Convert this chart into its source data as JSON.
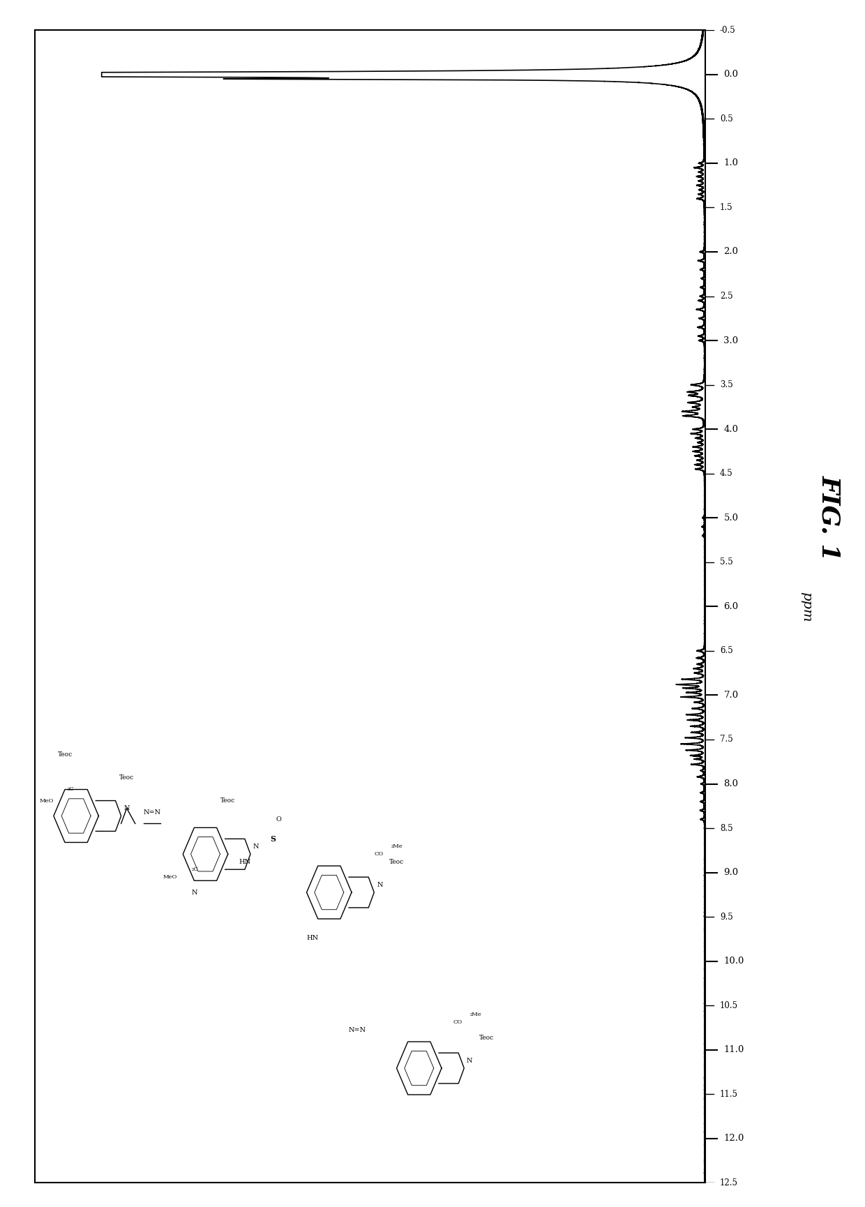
{
  "background_color": "#ffffff",
  "spectrum_color": "#000000",
  "ppm_min": -0.5,
  "ppm_max": 12.5,
  "fig_label": "FIG. 1",
  "fig_label_fontsize": 26,
  "ppm_label": "ppm",
  "tick_labels_all": [
    -0.5,
    0.0,
    0.5,
    1.0,
    1.5,
    2.0,
    2.5,
    3.0,
    3.5,
    4.0,
    4.5,
    5.0,
    5.5,
    6.0,
    6.5,
    7.0,
    7.5,
    8.0,
    8.5,
    9.0,
    9.5,
    10.0,
    10.5,
    11.0,
    11.5,
    12.0,
    12.5
  ],
  "major_ticks": [
    0.0,
    1.0,
    2.0,
    3.0,
    4.0,
    5.0,
    6.0,
    7.0,
    8.0,
    9.0,
    10.0,
    11.0,
    12.0
  ],
  "border_linewidth": 1.5,
  "spectrum_linewidth": 1.2
}
